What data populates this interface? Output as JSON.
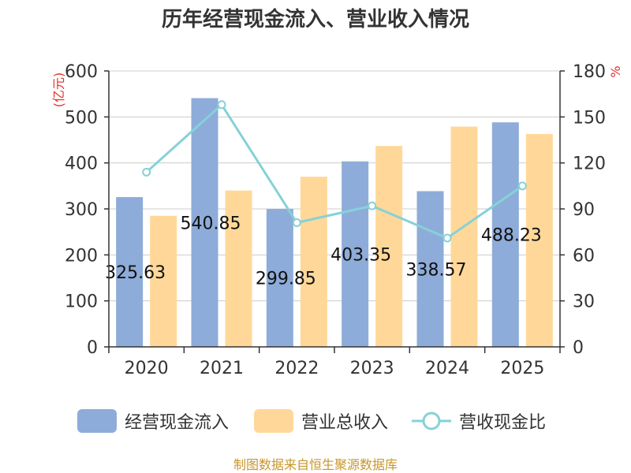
{
  "title": "历年经营现金流入、营业收入情况",
  "source": "制图数据来自恒生聚源数据库",
  "colors": {
    "cash_inflow": "#8eacd9",
    "revenue": "#ffd899",
    "ratio": "#86d1d8",
    "axis": "#333333",
    "grid": "#cccccc",
    "unit": "#e0312b"
  },
  "chart_data": {
    "type": "bar+line",
    "title": "历年经营现金流入、营业收入情况",
    "categories": [
      "2020",
      "2021",
      "2022",
      "2023",
      "2024",
      "2025"
    ],
    "left_axis": {
      "unit": "(亿元)",
      "ylim": [
        0,
        600
      ],
      "ticks": [
        "0",
        "100",
        "200",
        "300",
        "400",
        "500",
        "600"
      ]
    },
    "right_axis": {
      "unit": "%",
      "ylim": [
        0,
        180
      ],
      "ticks": [
        "0",
        "30",
        "60",
        "90",
        "120",
        "150",
        "180"
      ]
    },
    "series": [
      {
        "name": "经营现金流入",
        "type": "bar",
        "axis": "left",
        "values": [
          325.63,
          540.85,
          299.85,
          403.35,
          338.57,
          488.23
        ],
        "labels": [
          "325.63",
          "540.85",
          "299.85",
          "403.35",
          "338.57",
          "488.23"
        ]
      },
      {
        "name": "营业总收入",
        "type": "bar",
        "axis": "left",
        "values": [
          285,
          340,
          370,
          437,
          479,
          463
        ]
      },
      {
        "name": "营收现金比",
        "type": "line",
        "axis": "right",
        "values": [
          114,
          158,
          81,
          92,
          71,
          105
        ]
      }
    ],
    "legend": [
      "经营现金流入",
      "营业总收入",
      "营收现金比"
    ],
    "legend_position": "bottom",
    "grid": true
  }
}
